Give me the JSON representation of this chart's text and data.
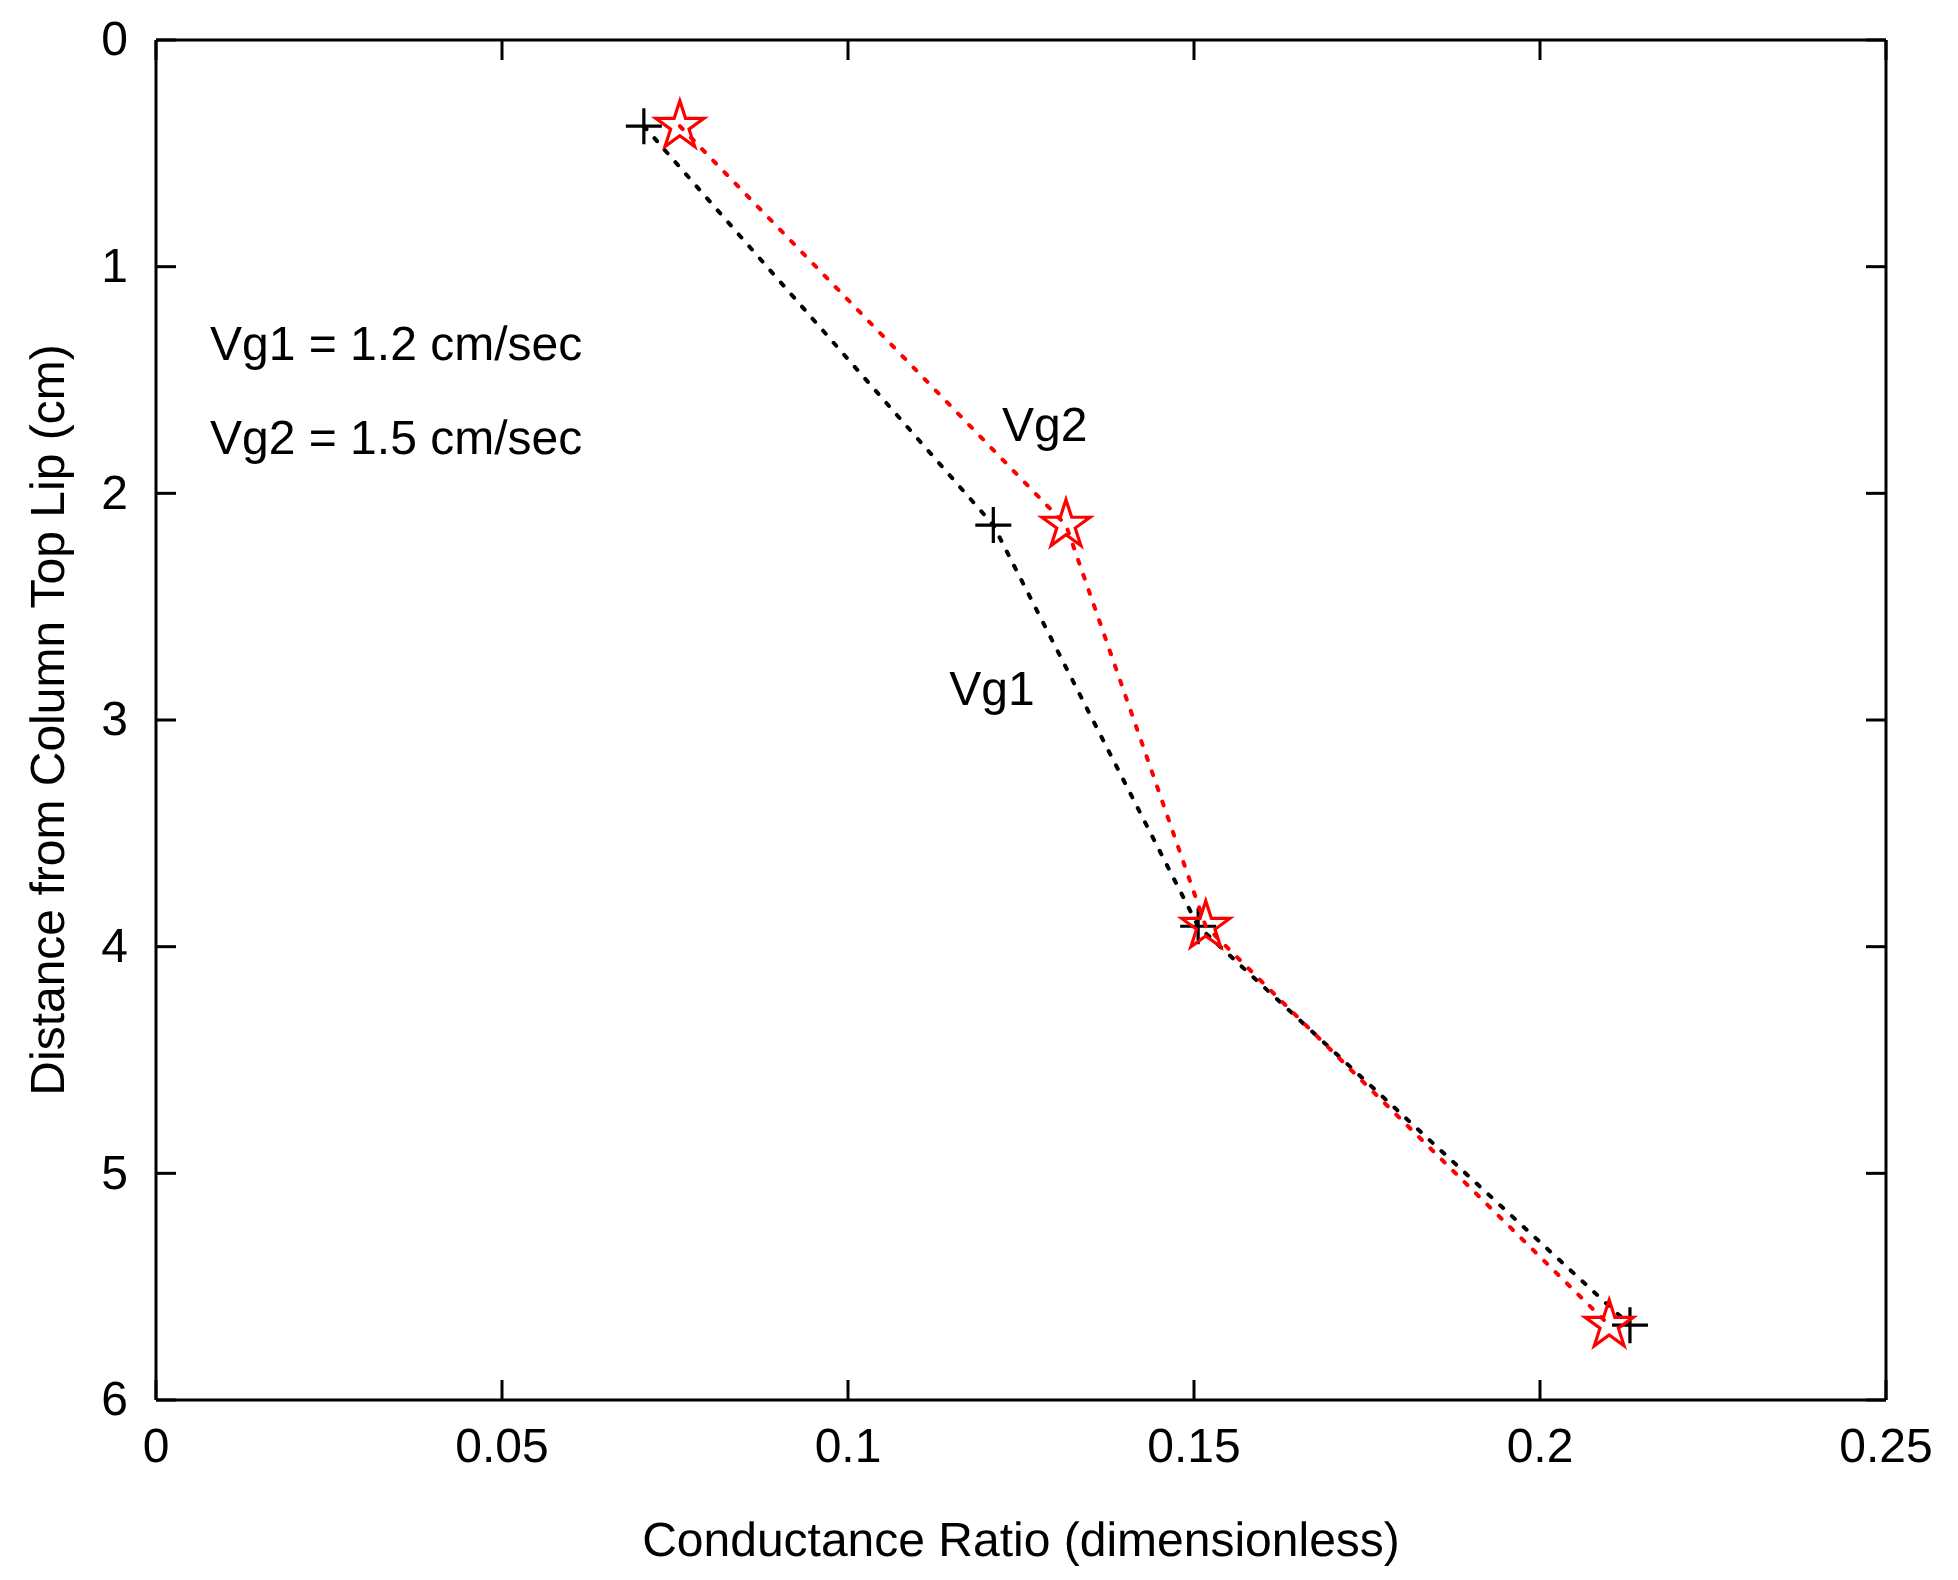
{
  "chart_data": {
    "type": "line",
    "xlabel": "Conductance Ratio (dimensionless)",
    "ylabel": "Distance from Column Top Lip (cm)",
    "xlim": [
      0,
      0.25
    ],
    "xticks": [
      0,
      0.05,
      0.1,
      0.15,
      0.2,
      0.25
    ],
    "ylim": [
      6,
      0
    ],
    "yticks": [
      0,
      1,
      2,
      3,
      4,
      5,
      6
    ],
    "grid": false,
    "line_style": "dotted",
    "annotations": [
      "Vg1 = 1.2 cm/sec",
      "Vg2 = 1.5 cm/sec"
    ],
    "series": [
      {
        "name": "Vg1",
        "color": "#000000",
        "marker": "cross",
        "x": [
          0.0705,
          0.121,
          0.1506,
          0.213
        ],
        "values": [
          0.38,
          2.14,
          3.91,
          5.67
        ]
      },
      {
        "name": "Vg2",
        "color": "#ff0000",
        "marker": "star",
        "x": [
          0.0757,
          0.1315,
          0.1517,
          0.21
        ],
        "values": [
          0.38,
          2.14,
          3.91,
          5.67
        ]
      }
    ]
  }
}
